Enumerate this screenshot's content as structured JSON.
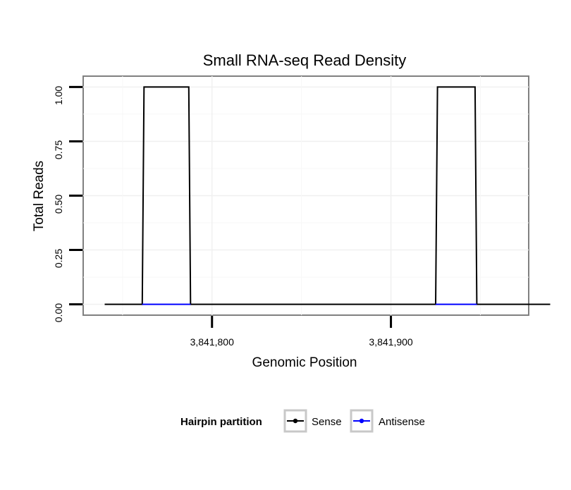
{
  "chart_data": {
    "type": "line",
    "title": "Small RNA-seq Read Density",
    "xlabel": "Genomic Position",
    "ylabel": "Total Reads",
    "xlim": [
      3841728,
      3841977
    ],
    "ylim": [
      -0.05,
      1.05
    ],
    "x_ticks": [
      3841800,
      3841900
    ],
    "x_tick_labels": [
      "3,841,800",
      "3,841,900"
    ],
    "y_ticks": [
      0,
      0.25,
      0.5,
      0.75,
      1.0
    ],
    "y_tick_labels": [
      "0.00",
      "0.25",
      "0.50",
      "0.75",
      "1.00"
    ],
    "grid": true,
    "legend": {
      "title": "Hairpin partition",
      "position": "bottom"
    },
    "series": [
      {
        "name": "Sense",
        "color": "#000000",
        "x": [
          3841740,
          3841761,
          3841762,
          3841787,
          3841788,
          3841925,
          3841926,
          3841947,
          3841948,
          3841989
        ],
        "y": [
          0,
          0,
          1,
          1,
          0,
          0,
          1,
          1,
          0,
          0
        ]
      },
      {
        "name": "Antisense",
        "color": "#0000ff",
        "x": [
          3841761,
          3841788
        ],
        "y": [
          0,
          0
        ],
        "x2": [
          3841925,
          3841948
        ]
      }
    ]
  }
}
